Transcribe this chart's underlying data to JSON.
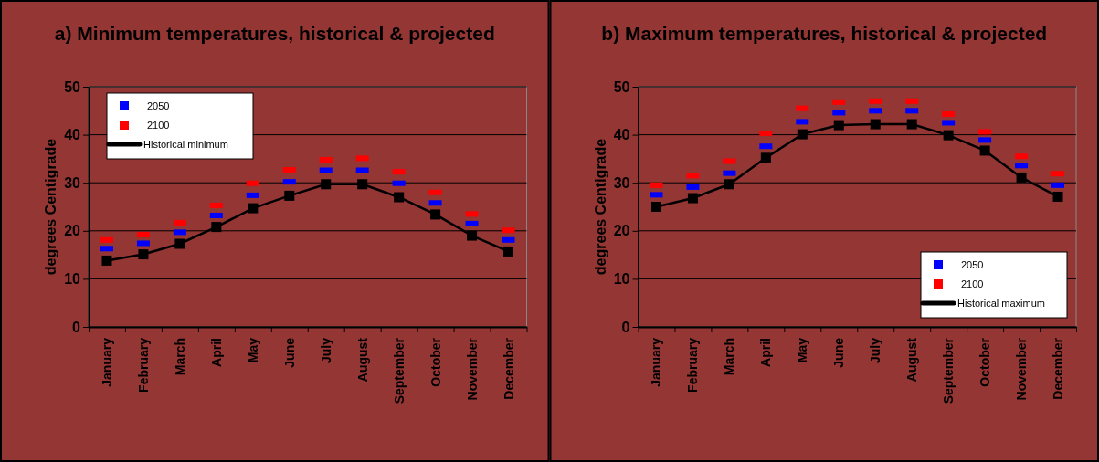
{
  "chart_data": [
    {
      "type": "line",
      "title": "a) Minimum temperatures, historical & projected",
      "ylabel": "degrees Centigrade",
      "categories": [
        "January",
        "February",
        "March",
        "April",
        "May",
        "June",
        "July",
        "August",
        "September",
        "October",
        "November",
        "December"
      ],
      "ylim": [
        0,
        50
      ],
      "yticks": [
        0,
        10,
        20,
        30,
        40,
        50
      ],
      "grid": "y",
      "legend": "top left",
      "marker": "square",
      "series": [
        {
          "name": "2050",
          "type": "scatter",
          "color": "#0000ff",
          "values": [
            16.3,
            17.4,
            19.7,
            23.2,
            27.4,
            30.2,
            32.6,
            32.6,
            29.9,
            25.8,
            21.5,
            18.1
          ]
        },
        {
          "name": "2100",
          "type": "scatter",
          "color": "#ff0000",
          "values": [
            18.1,
            19.2,
            21.7,
            25.3,
            29.9,
            32.7,
            34.8,
            35.1,
            32.3,
            28.0,
            23.5,
            20.1
          ]
        },
        {
          "name": "Historical minimum",
          "type": "line",
          "color": "#000000",
          "values": [
            13.8,
            15.1,
            17.3,
            20.8,
            24.7,
            27.3,
            29.7,
            29.7,
            27.0,
            23.4,
            19.0,
            15.7
          ]
        }
      ]
    },
    {
      "type": "line",
      "title": "b) Maximum temperatures, historical & projected",
      "ylabel": "degrees Centigrade",
      "categories": [
        "January",
        "February",
        "March",
        "April",
        "May",
        "June",
        "July",
        "August",
        "September",
        "October",
        "November",
        "December"
      ],
      "ylim": [
        0,
        50
      ],
      "yticks": [
        0,
        10,
        20,
        30,
        40,
        50
      ],
      "grid": "y",
      "legend": "bottom right",
      "marker": "square",
      "series": [
        {
          "name": "2050",
          "type": "scatter",
          "color": "#0000ff",
          "values": [
            27.5,
            29.1,
            32.0,
            37.6,
            42.7,
            44.6,
            45.0,
            45.0,
            42.5,
            38.9,
            33.6,
            29.5
          ]
        },
        {
          "name": "2100",
          "type": "scatter",
          "color": "#ff0000",
          "values": [
            29.5,
            31.5,
            34.5,
            40.3,
            45.5,
            46.8,
            47.0,
            47.0,
            44.3,
            40.6,
            35.5,
            31.9
          ]
        },
        {
          "name": "Historical maximum",
          "type": "line",
          "color": "#000000",
          "values": [
            25.0,
            26.8,
            29.7,
            35.2,
            40.1,
            42.0,
            42.2,
            42.2,
            39.9,
            36.7,
            31.1,
            27.1
          ]
        }
      ]
    }
  ]
}
